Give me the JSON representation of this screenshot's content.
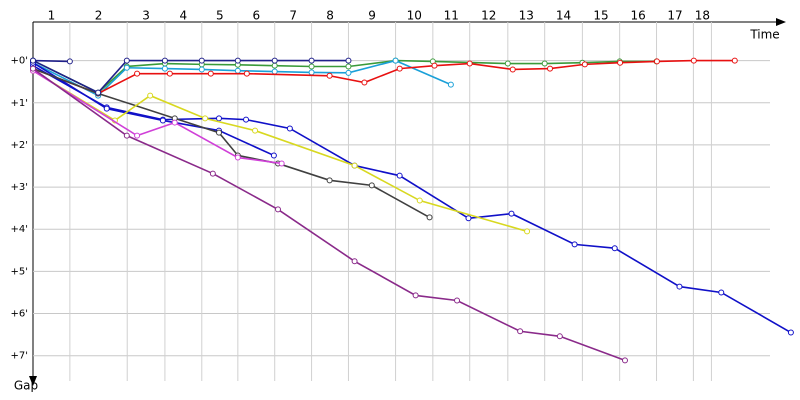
{
  "chart_data": {
    "type": "line",
    "x_label": "Time",
    "y_label": "Gap",
    "lap_labels": [
      "1",
      "2",
      "3",
      "4",
      "5",
      "6",
      "7",
      "8",
      "9",
      "10",
      "11",
      "12",
      "13",
      "14",
      "15",
      "16",
      "17",
      "18"
    ],
    "lap_times": [
      0,
      0.9,
      2.3,
      3.22,
      4.12,
      5.0,
      5.9,
      6.8,
      7.7,
      8.85,
      9.76,
      10.66,
      11.59,
      12.49,
      13.41,
      14.32,
      15.22,
      16.12,
      16.56
    ],
    "xlim": [
      0,
      18.6
    ],
    "ylim": [
      -1.2,
      7.6
    ],
    "y_inverted": true,
    "grid": true,
    "yticks": [
      {
        "value": 0,
        "label": "+0'"
      },
      {
        "value": 1,
        "label": "+1'"
      },
      {
        "value": 2,
        "label": "+2'"
      },
      {
        "value": 3,
        "label": "+3'"
      },
      {
        "value": 4,
        "label": "+4'"
      },
      {
        "value": 5,
        "label": "+5'"
      },
      {
        "value": 6,
        "label": "+6'"
      },
      {
        "value": 7,
        "label": "+7'"
      }
    ],
    "series": [
      {
        "color": "#3a9a3a",
        "x": [
          0,
          1.59,
          2.29,
          3.22,
          4.12,
          5.0,
          5.9,
          6.8,
          7.7,
          8.85,
          9.76,
          11.59,
          12.49,
          13.41,
          14.32,
          15.22
        ],
        "values": [
          0,
          0.76,
          0.14,
          0.07,
          0.09,
          0.1,
          0.12,
          0.14,
          0.14,
          0,
          0.02,
          0.07,
          0.07,
          0.05,
          0.02,
          0.02
        ]
      },
      {
        "color": "#1aa0d8",
        "x": [
          0,
          1.59,
          2.29,
          3.22,
          4.12,
          5.0,
          5.9,
          6.8,
          7.7,
          8.85,
          10.2
        ],
        "values": [
          0.05,
          0.83,
          0.17,
          0.19,
          0.21,
          0.24,
          0.26,
          0.28,
          0.29,
          0,
          0.57
        ]
      },
      {
        "color": "#e81010",
        "x": [
          0,
          1.59,
          2.54,
          3.34,
          4.34,
          5.22,
          7.24,
          8.09,
          8.95,
          9.8,
          10.66,
          11.71,
          12.62,
          13.47,
          14.33,
          15.23,
          16.13,
          17.13
        ],
        "values": [
          0.19,
          0.78,
          0.31,
          0.31,
          0.31,
          0.31,
          0.36,
          0.52,
          0.19,
          0.12,
          0.07,
          0.21,
          0.19,
          0.09,
          0.05,
          0.02,
          0,
          0
        ]
      },
      {
        "color": "#1010c8",
        "x": [
          0,
          1.8,
          3.17,
          4.54,
          5.2,
          6.27,
          7.85,
          8.95,
          10.63,
          11.68,
          13.22,
          14.2,
          15.78,
          16.8,
          18.5
        ],
        "values": [
          0.12,
          1.11,
          1.4,
          1.37,
          1.4,
          1.61,
          2.49,
          2.73,
          3.74,
          3.63,
          4.36,
          4.45,
          5.36,
          5.5,
          6.45
        ]
      },
      {
        "color": "#1010c8",
        "x": [
          0,
          1.8,
          3.17,
          4.54,
          5.88
        ],
        "values": [
          0.05,
          1.14,
          1.42,
          1.66,
          2.25
        ]
      },
      {
        "color": "#404040",
        "x": [
          0,
          1.59,
          3.46,
          4.54,
          5.0,
          5.98,
          7.24,
          8.27,
          9.68
        ],
        "values": [
          0.19,
          0.78,
          1.37,
          1.71,
          2.25,
          2.44,
          2.84,
          2.96,
          3.72
        ]
      },
      {
        "color": "#d8d820",
        "x": [
          0,
          2.0,
          2.86,
          4.2,
          5.42,
          7.85,
          9.44,
          12.06
        ],
        "values": [
          0.24,
          1.42,
          0.83,
          1.37,
          1.66,
          2.49,
          3.32,
          4.05
        ]
      },
      {
        "color": "#d040d8",
        "x": [
          0,
          2.54,
          3.46,
          5.0,
          6.07
        ],
        "values": [
          0.24,
          1.78,
          1.47,
          2.3,
          2.44
        ]
      },
      {
        "color": "#8a2a8a",
        "x": [
          0,
          2.29,
          4.39,
          5.98,
          7.85,
          9.34,
          10.35,
          11.89,
          12.86,
          14.45
        ],
        "values": [
          0.19,
          1.78,
          2.68,
          3.53,
          4.76,
          5.57,
          5.69,
          6.42,
          6.54,
          7.11
        ]
      },
      {
        "color": "#20208a",
        "x": [
          0,
          1.59,
          2.29,
          3.22,
          4.12,
          5.0,
          5.9,
          6.8,
          7.7
        ],
        "values": [
          0,
          0.76,
          0,
          0,
          0,
          0,
          0,
          0,
          0
        ]
      },
      {
        "color": "#20208a",
        "x": [
          0,
          0.9
        ],
        "values": [
          0,
          0.02
        ]
      }
    ]
  }
}
